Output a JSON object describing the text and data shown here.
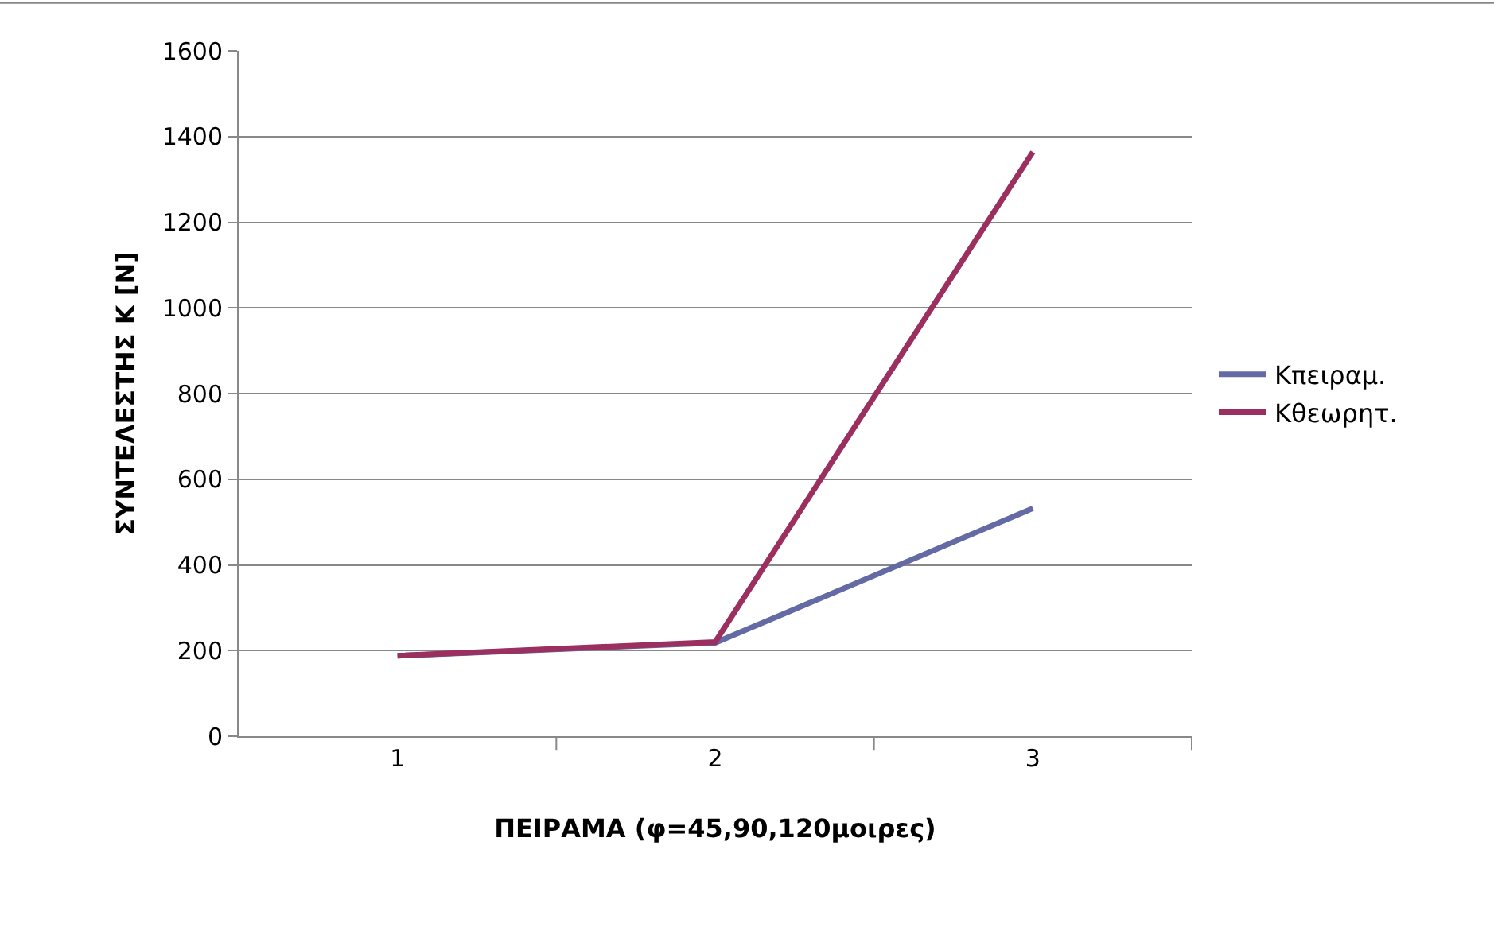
{
  "chart_data": {
    "type": "line",
    "xlabel": "ΠΕΙΡΑΜΑ (φ=45,90,120μοιρες)",
    "ylabel": "ΣΥΝΤΕΛΕΣΤΗΣ Κ [N]",
    "categories": [
      "1",
      "2",
      "3"
    ],
    "series": [
      {
        "name": "Κπειραμ.",
        "color": "#646aa4",
        "values": [
          188,
          218,
          532
        ]
      },
      {
        "name": "Κθεωρητ.",
        "color": "#9b3060",
        "values": [
          188,
          220,
          1364
        ]
      }
    ],
    "ylim": [
      0,
      1600
    ],
    "yticks": [
      0,
      200,
      400,
      600,
      800,
      1000,
      1200,
      1400,
      1600
    ],
    "grid": "y",
    "legend": "right",
    "marker": "none",
    "line_style": "solid"
  }
}
